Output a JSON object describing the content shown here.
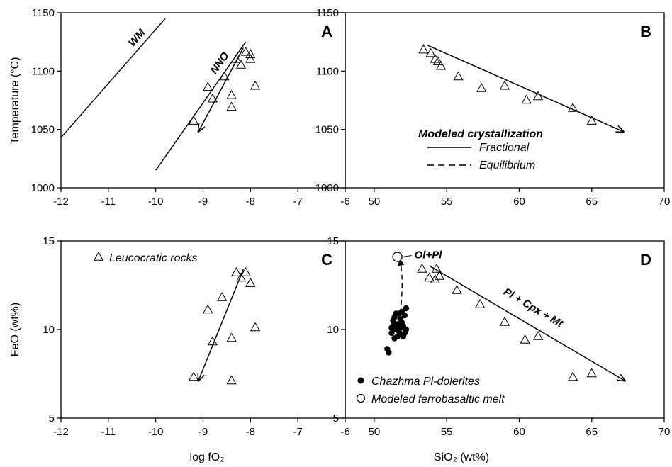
{
  "chart_data": [
    {
      "panel": "A",
      "type": "scatter",
      "xlim": [
        -12,
        -6
      ],
      "ylim": [
        1000,
        1150
      ],
      "xticks": [
        "-12",
        "-11",
        "-10",
        "-9",
        "-8",
        "-7",
        "-6"
      ],
      "yticks": [
        "1000",
        "1050",
        "1100",
        "1150"
      ],
      "xlabel": "",
      "ylabel": "Temperature (°C)",
      "buffers": [
        {
          "label": "WM",
          "points": [
            [
              -12,
              1043
            ],
            [
              -9.8,
              1145
            ]
          ]
        },
        {
          "label": "NNO",
          "points": [
            [
              -10,
              1015
            ],
            [
              -8.1,
              1125
            ]
          ]
        }
      ],
      "points": [
        [
          -9.2,
          1057
        ],
        [
          -8.9,
          1086
        ],
        [
          -8.8,
          1076
        ],
        [
          -8.55,
          1095
        ],
        [
          -8.4,
          1069
        ],
        [
          -8.4,
          1079
        ],
        [
          -8.3,
          1110
        ],
        [
          -8.2,
          1105
        ],
        [
          -8.1,
          1116
        ],
        [
          -8.0,
          1110
        ],
        [
          -8.0,
          1114
        ],
        [
          -7.9,
          1087
        ]
      ],
      "arrow": {
        "from": [
          -8.15,
          1120
        ],
        "to": [
          -9.1,
          1048
        ]
      }
    },
    {
      "panel": "B",
      "type": "scatter",
      "xlim": [
        48,
        70
      ],
      "ylim": [
        1000,
        1150
      ],
      "xticks": [
        "50",
        "55",
        "60",
        "65",
        "70"
      ],
      "yticks": [
        "1000",
        "1050",
        "1100",
        "1150"
      ],
      "xlabel": "",
      "ylabel": "",
      "points": [
        [
          53.4,
          1118
        ],
        [
          53.9,
          1115
        ],
        [
          54.2,
          1110
        ],
        [
          54.4,
          1108
        ],
        [
          54.6,
          1104
        ],
        [
          55.8,
          1095
        ],
        [
          57.4,
          1085
        ],
        [
          59.0,
          1087
        ],
        [
          60.5,
          1075
        ],
        [
          61.3,
          1078
        ],
        [
          63.7,
          1068
        ],
        [
          65.0,
          1057
        ]
      ],
      "arrow": {
        "from": [
          53.7,
          1122
        ],
        "to": [
          67.2,
          1048
        ]
      },
      "legend": {
        "title": "Modeled crystallization",
        "items": [
          {
            "label": "Fractional",
            "style": "solid"
          },
          {
            "label": "Equilibrium",
            "style": "dashed"
          }
        ]
      }
    },
    {
      "panel": "C",
      "type": "scatter",
      "xlim": [
        -12,
        -6
      ],
      "ylim": [
        5,
        15
      ],
      "xticks": [
        "-12",
        "-11",
        "-10",
        "-9",
        "-8",
        "-7",
        "-6"
      ],
      "yticks": [
        "5",
        "10",
        "15"
      ],
      "xlabel": "log fO₂",
      "ylabel": "FeO (wt%)",
      "points": [
        [
          -9.2,
          7.3
        ],
        [
          -8.9,
          11.1
        ],
        [
          -8.8,
          9.3
        ],
        [
          -8.6,
          11.8
        ],
        [
          -8.4,
          9.5
        ],
        [
          -8.4,
          7.1
        ],
        [
          -8.3,
          13.2
        ],
        [
          -8.2,
          12.9
        ],
        [
          -8.1,
          13.2
        ],
        [
          -8.0,
          12.6
        ],
        [
          -8.0,
          12.6
        ],
        [
          -7.9,
          10.1
        ]
      ],
      "arrow": {
        "from": [
          -8.15,
          13.4
        ],
        "to": [
          -9.1,
          7.1
        ]
      },
      "legend": {
        "items": [
          {
            "label": "Leucocratic rocks",
            "marker": "triangle"
          }
        ]
      }
    },
    {
      "panel": "D",
      "type": "scatter",
      "xlim": [
        48,
        70
      ],
      "ylim": [
        5,
        15
      ],
      "xticks": [
        "50",
        "55",
        "60",
        "65",
        "70"
      ],
      "yticks": [
        "5",
        "10",
        "15"
      ],
      "xlabel": "SiO₂ (wt%)",
      "ylabel": "",
      "series": [
        {
          "name": "Leucocratic rocks",
          "marker": "triangle",
          "points": [
            [
              53.3,
              13.4
            ],
            [
              53.8,
              12.9
            ],
            [
              54.2,
              12.8
            ],
            [
              54.3,
              13.4
            ],
            [
              54.5,
              13.0
            ],
            [
              55.7,
              12.2
            ],
            [
              57.3,
              11.4
            ],
            [
              59.0,
              10.4
            ],
            [
              60.4,
              9.4
            ],
            [
              61.3,
              9.6
            ],
            [
              63.7,
              7.3
            ],
            [
              65.0,
              7.5
            ]
          ]
        },
        {
          "name": "Chazhma Pl-dolerites",
          "marker": "filled-circle",
          "points": [
            [
              50.9,
              8.9
            ],
            [
              51.0,
              8.7
            ],
            [
              51.2,
              9.8
            ],
            [
              51.3,
              10.2
            ],
            [
              51.3,
              10.5
            ],
            [
              51.4,
              9.5
            ],
            [
              51.5,
              10.0
            ],
            [
              51.5,
              10.9
            ],
            [
              51.6,
              10.3
            ],
            [
              51.7,
              9.9
            ],
            [
              51.8,
              10.6
            ],
            [
              51.8,
              10.1
            ],
            [
              51.9,
              11.0
            ],
            [
              51.9,
              9.7
            ],
            [
              52.0,
              10.2
            ],
            [
              52.1,
              10.8
            ],
            [
              52.1,
              9.8
            ],
            [
              52.2,
              11.2
            ],
            [
              51.4,
              10.7
            ],
            [
              51.6,
              9.6
            ],
            [
              51.9,
              10.4
            ],
            [
              52.2,
              10.0
            ],
            [
              51.2,
              10.1
            ],
            [
              51.7,
              10.9
            ],
            [
              52.0,
              9.6
            ]
          ]
        },
        {
          "name": "Modeled ferrobasaltic melt",
          "marker": "open-circle",
          "points": [
            [
              51.6,
              14.1
            ]
          ]
        }
      ],
      "fractional_arrow": {
        "from": [
          53.8,
          13.6
        ],
        "to": [
          67.3,
          7.1
        ]
      },
      "equilibrium_arrow": {
        "from": [
          51.8,
          10.9
        ],
        "to": [
          51.8,
          14.0
        ]
      },
      "annotations": [
        {
          "text": "Ol+Pl",
          "at": [
            51.6,
            14.1
          ]
        },
        {
          "text": "Pl + Cpx + Mt",
          "along": "fractional_arrow"
        }
      ]
    }
  ]
}
